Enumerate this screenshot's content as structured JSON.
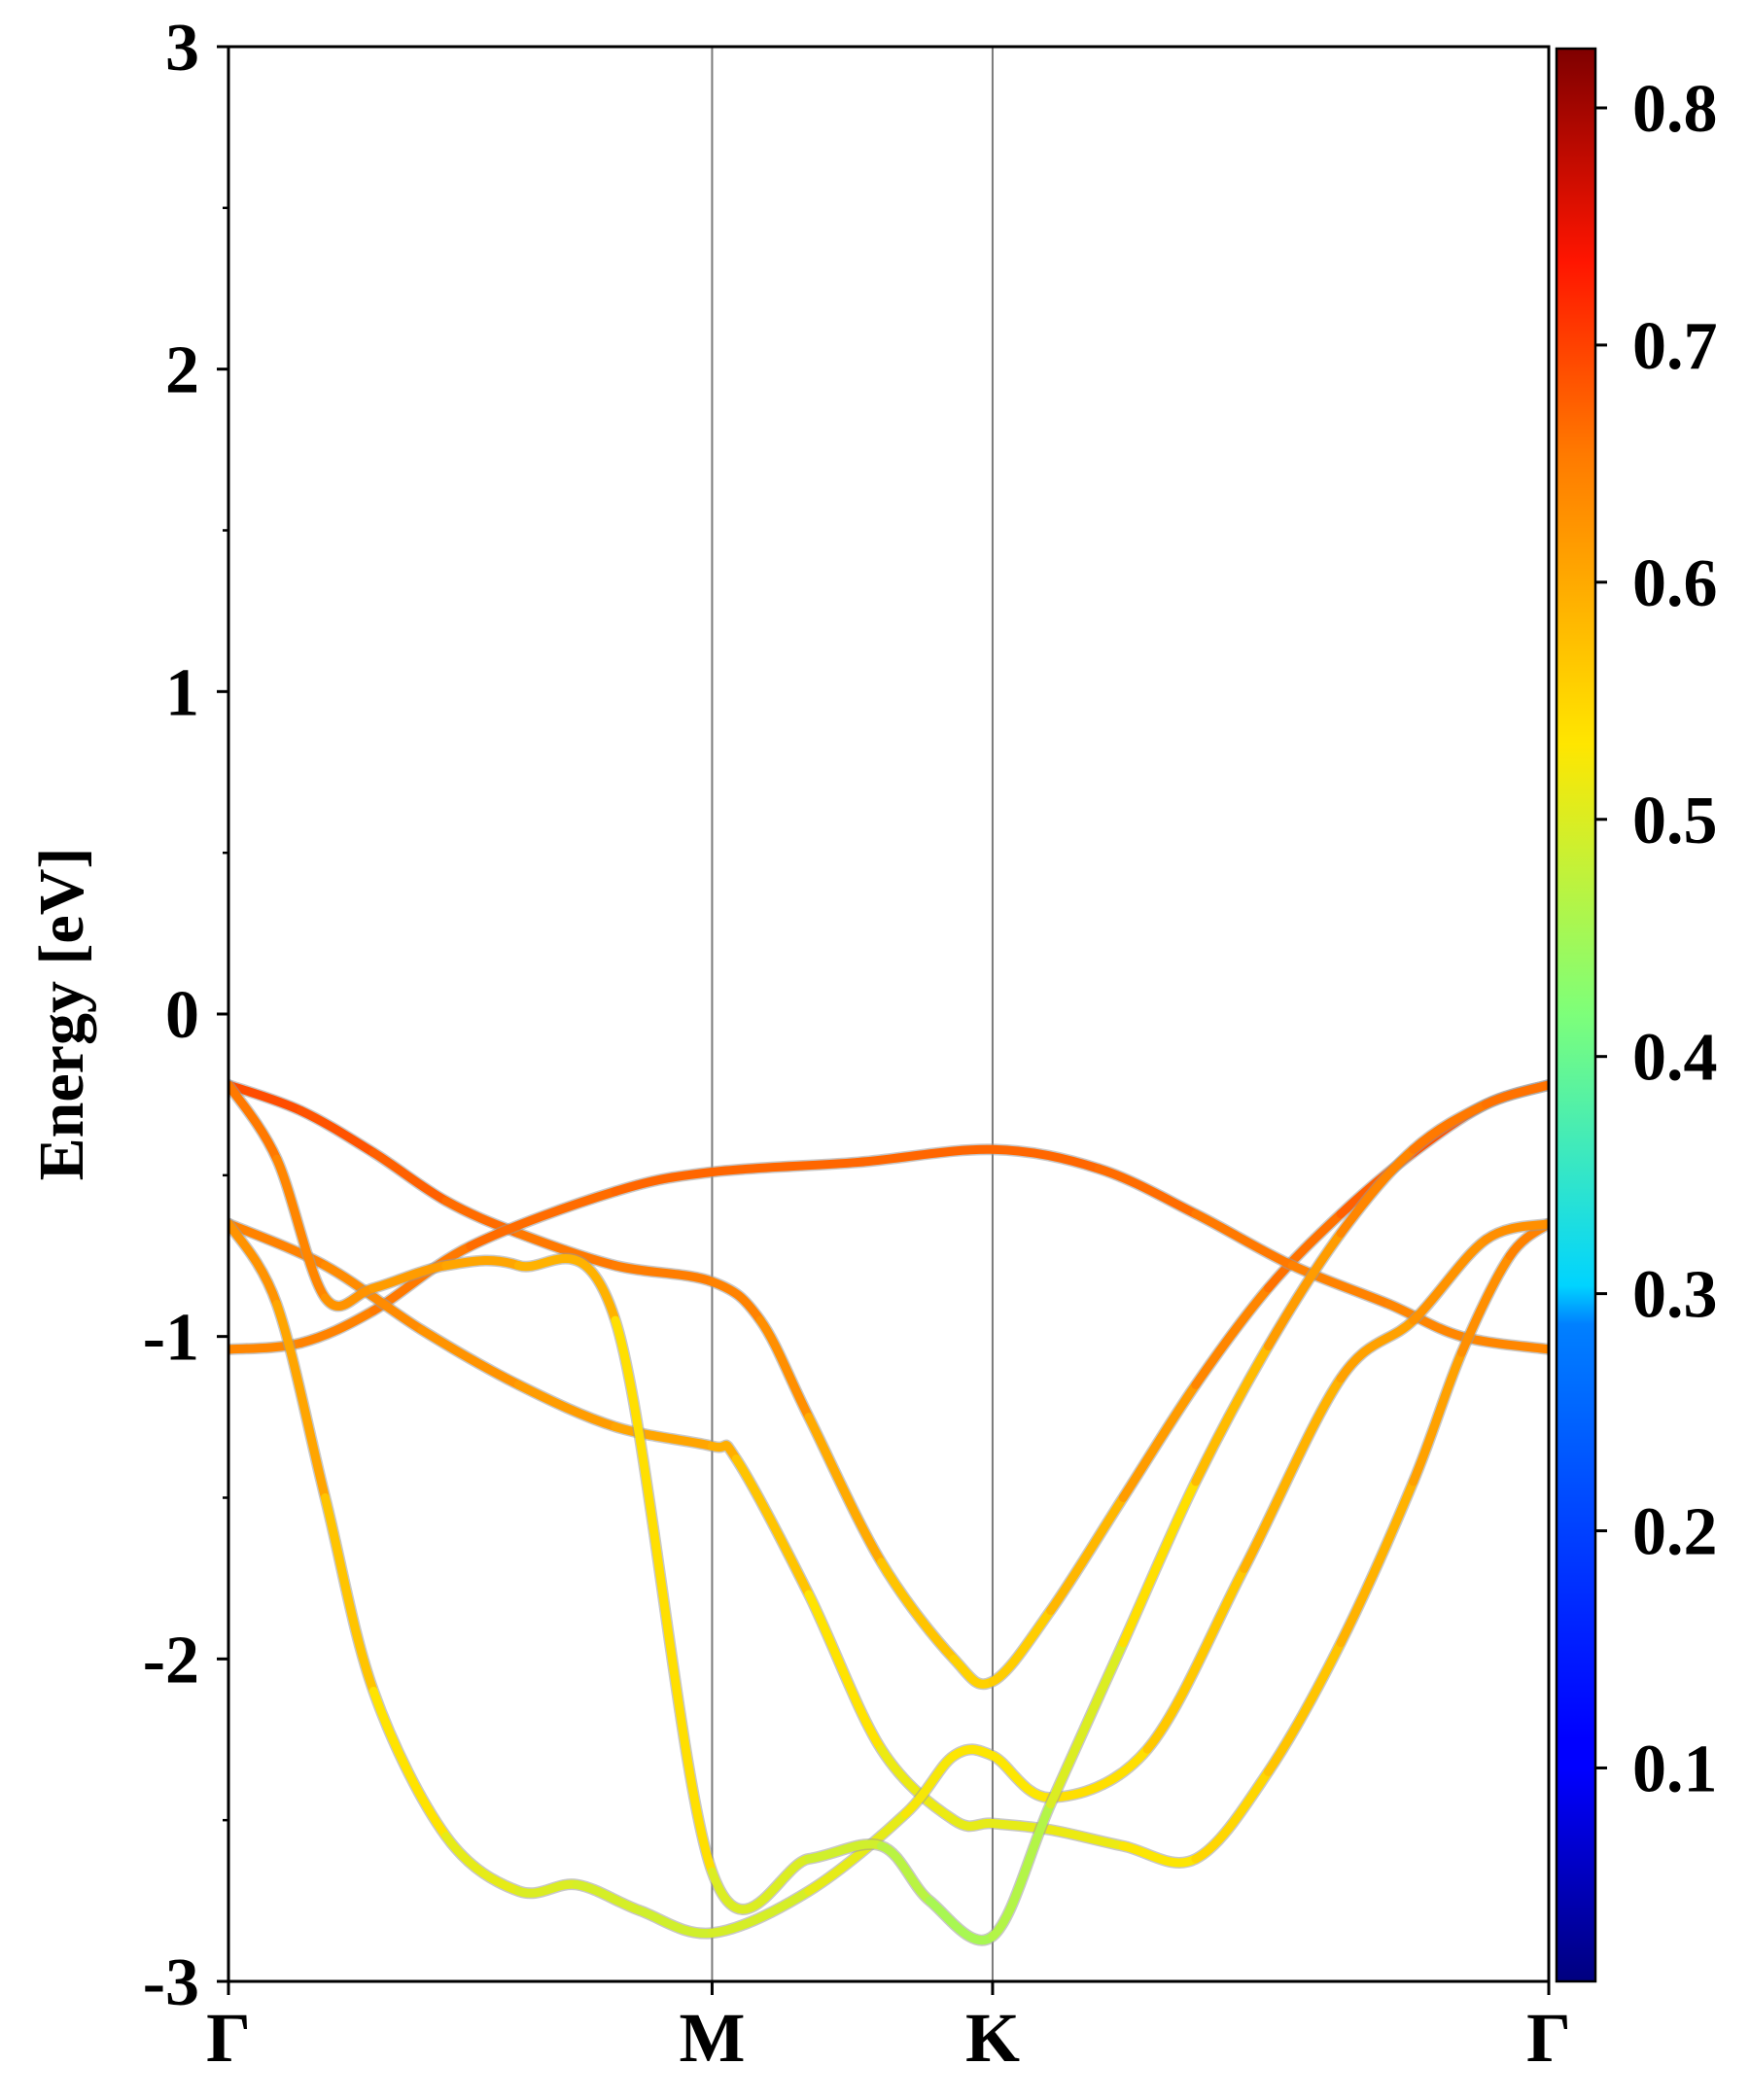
{
  "chart_data": {
    "type": "line",
    "title": "",
    "xlabel": "",
    "ylabel": "Energy [eV]",
    "ylim": [
      -3,
      3
    ],
    "yticks": [
      -3,
      -2,
      -1,
      0,
      1,
      2,
      3
    ],
    "ytick_labels": [
      "-3",
      "-2",
      "-1",
      "0",
      "1",
      "2",
      "3"
    ],
    "kpoint_positions": [
      0,
      1.0,
      1.58,
      2.73
    ],
    "kpoint_labels": [
      "Γ",
      "M",
      "K",
      "Γ"
    ],
    "grid": false,
    "colorbar": {
      "colormap": "jet",
      "range": [
        0.01,
        0.825
      ],
      "ticks": [
        0.1,
        0.2,
        0.3,
        0.4,
        0.5,
        0.6,
        0.7,
        0.8
      ],
      "tick_labels": [
        "0.1",
        "0.2",
        "0.3",
        "0.4",
        "0.5",
        "0.6",
        "0.7",
        "0.8"
      ],
      "placement": "right"
    },
    "series": [
      {
        "x": [
          0,
          0.15,
          0.3,
          0.45,
          0.6,
          0.8,
          1.0,
          1.1,
          1.2,
          1.35,
          1.5,
          1.58,
          1.7,
          1.85,
          2.0,
          2.15,
          2.3,
          2.45,
          2.6,
          2.73
        ],
        "y": [
          -0.22,
          -0.3,
          -0.43,
          -0.58,
          -0.68,
          -0.78,
          -0.83,
          -0.95,
          -1.25,
          -1.7,
          -2.0,
          -2.07,
          -1.85,
          -1.5,
          -1.15,
          -0.85,
          -0.62,
          -0.43,
          -0.28,
          -0.22
        ],
        "w": [
          0.69,
          0.69,
          0.68,
          0.67,
          0.66,
          0.65,
          0.65,
          0.64,
          0.62,
          0.58,
          0.56,
          0.55,
          0.57,
          0.6,
          0.63,
          0.65,
          0.67,
          0.68,
          0.69,
          0.69
        ]
      },
      {
        "x": [
          0,
          0.15,
          0.3,
          0.5,
          0.8,
          1.0,
          1.3,
          1.58,
          1.8,
          2.0,
          2.2,
          2.4,
          2.55,
          2.73
        ],
        "y": [
          -1.04,
          -1.02,
          -0.92,
          -0.72,
          -0.55,
          -0.49,
          -0.46,
          -0.42,
          -0.48,
          -0.62,
          -0.78,
          -0.9,
          -1.0,
          -1.04
        ],
        "w": [
          0.64,
          0.64,
          0.65,
          0.66,
          0.67,
          0.67,
          0.67,
          0.67,
          0.67,
          0.66,
          0.65,
          0.64,
          0.64,
          0.64
        ]
      },
      {
        "x": [
          0,
          0.2,
          0.4,
          0.6,
          0.8,
          1.0,
          1.05,
          1.2,
          1.35,
          1.5,
          1.58,
          1.7,
          1.85,
          2.0,
          2.15,
          2.3,
          2.45,
          2.55,
          2.65,
          2.73
        ],
        "y": [
          -0.65,
          -0.78,
          -0.98,
          -1.15,
          -1.28,
          -1.34,
          -1.38,
          -1.8,
          -2.28,
          -2.5,
          -2.51,
          -2.53,
          -2.58,
          -2.62,
          -2.35,
          -1.95,
          -1.45,
          -1.05,
          -0.75,
          -0.65
        ],
        "w": [
          0.65,
          0.64,
          0.63,
          0.62,
          0.61,
          0.6,
          0.59,
          0.55,
          0.52,
          0.51,
          0.51,
          0.51,
          0.52,
          0.54,
          0.56,
          0.58,
          0.6,
          0.62,
          0.64,
          0.65
        ]
      },
      {
        "x": [
          0,
          0.1,
          0.2,
          0.3,
          0.45,
          0.6,
          0.72,
          0.85,
          1.0,
          1.2,
          1.4,
          1.5,
          1.58,
          1.7,
          1.9,
          2.1,
          2.3,
          2.45,
          2.6,
          2.73
        ],
        "y": [
          -0.65,
          -0.9,
          -1.5,
          -2.1,
          -2.55,
          -2.72,
          -2.7,
          -2.78,
          -2.85,
          -2.72,
          -2.48,
          -2.3,
          -2.3,
          -2.43,
          -2.28,
          -1.72,
          -1.13,
          -0.95,
          -0.7,
          -0.65
        ],
        "w": [
          0.63,
          0.62,
          0.59,
          0.55,
          0.52,
          0.5,
          0.5,
          0.49,
          0.49,
          0.5,
          0.52,
          0.53,
          0.53,
          0.53,
          0.55,
          0.58,
          0.6,
          0.62,
          0.63,
          0.63
        ]
      },
      {
        "x": [
          0,
          0.1,
          0.2,
          0.3,
          0.45,
          0.6,
          0.8,
          1.0,
          1.2,
          1.35,
          1.45,
          1.58,
          1.7,
          1.85,
          2.0,
          2.15,
          2.3,
          2.45,
          2.6,
          2.73
        ],
        "y": [
          -0.22,
          -0.45,
          -0.88,
          -0.85,
          -0.78,
          -0.78,
          -0.95,
          -2.66,
          -2.62,
          -2.58,
          -2.75,
          -2.86,
          -2.45,
          -1.95,
          -1.45,
          -1.03,
          -0.68,
          -0.42,
          -0.28,
          -0.22
        ],
        "w": [
          0.66,
          0.65,
          0.63,
          0.62,
          0.61,
          0.6,
          0.58,
          0.5,
          0.5,
          0.48,
          0.46,
          0.45,
          0.48,
          0.52,
          0.56,
          0.6,
          0.63,
          0.65,
          0.66,
          0.66
        ]
      }
    ]
  }
}
